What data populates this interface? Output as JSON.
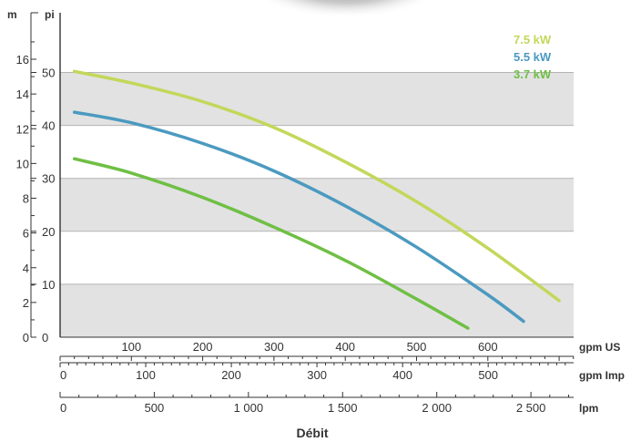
{
  "chart_data": {
    "type": "line",
    "xlabel": "Débit",
    "left_axis_unit": "m",
    "right_axis_unit": "pi",
    "pi_ticks": [
      0,
      10,
      20,
      30,
      40,
      50
    ],
    "m_ticks": [
      0,
      2,
      4,
      6,
      8,
      10,
      12,
      14,
      16
    ],
    "x_axes": [
      {
        "unit": "gpm US",
        "ticks": [
          100,
          200,
          300,
          400,
          500,
          600
        ],
        "show_zero": false,
        "minor": 20
      },
      {
        "unit": "gpm Imp",
        "ticks": [
          0,
          100,
          200,
          300,
          400,
          500
        ],
        "show_zero": true,
        "minor": 10
      },
      {
        "unit": "lpm",
        "ticks": [
          0,
          500,
          1000,
          1500,
          2000,
          2500
        ],
        "tick_labels": [
          "0",
          "500",
          "1 000",
          "1 500",
          "2 000",
          "2 500"
        ],
        "show_zero": true,
        "minor": 100
      }
    ],
    "xlim_gpm_us": [
      0,
      720
    ],
    "ylim_pi": [
      0,
      55
    ],
    "series": [
      {
        "name": "7.5 kW",
        "color": "#c3d75a",
        "x": [
          20,
          100,
          200,
          300,
          400,
          500,
          600,
          700
        ],
        "y": [
          50.2,
          48.0,
          44.5,
          39.6,
          33.1,
          25.6,
          16.8,
          6.9
        ]
      },
      {
        "name": "5.5 kW",
        "color": "#4b9ac0",
        "x": [
          20,
          100,
          200,
          300,
          400,
          500,
          600,
          650
        ],
        "y": [
          42.5,
          40.5,
          36.6,
          31.4,
          24.8,
          17.0,
          8.0,
          3.0
        ]
      },
      {
        "name": "3.7 kW",
        "color": "#6fbf44",
        "x": [
          20,
          100,
          200,
          300,
          400,
          500,
          572
        ],
        "y": [
          33.7,
          31.0,
          26.4,
          20.8,
          14.5,
          7.2,
          1.7
        ]
      }
    ],
    "grid": true
  }
}
